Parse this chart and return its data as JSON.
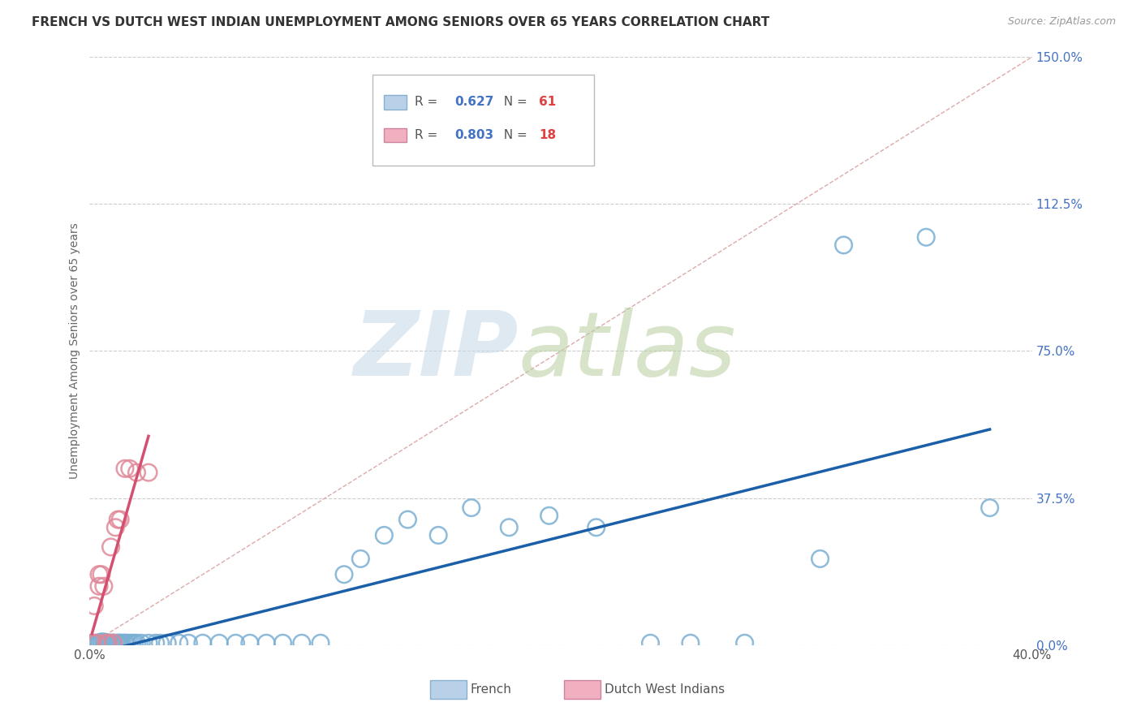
{
  "title": "FRENCH VS DUTCH WEST INDIAN UNEMPLOYMENT AMONG SENIORS OVER 65 YEARS CORRELATION CHART",
  "source": "Source: ZipAtlas.com",
  "ylabel": "Unemployment Among Seniors over 65 years",
  "xlim": [
    0.0,
    0.4
  ],
  "ylim": [
    0.0,
    1.5
  ],
  "xtick_pos": [
    0.0,
    0.4
  ],
  "xticklabels": [
    "0.0%",
    "40.0%"
  ],
  "yticks": [
    0.0,
    0.375,
    0.75,
    1.125,
    1.5
  ],
  "yticklabels": [
    "0.0%",
    "37.5%",
    "75.0%",
    "112.5%",
    "150.0%"
  ],
  "french_R": "0.627",
  "french_N": "61",
  "dutch_R": "0.803",
  "dutch_N": "18",
  "french_fill": "none",
  "french_edge": "#7bafd4",
  "french_line": "#1a5fa8",
  "dutch_fill": "none",
  "dutch_edge": "#e08898",
  "dutch_line": "#d45070",
  "ref_line_color": "#ccaaaa",
  "grid_color": "#cccccc",
  "title_color": "#333333",
  "source_color": "#999999",
  "ylabel_color": "#666666",
  "ytick_color": "#4472c4",
  "legend_french_fill": "#b8d0e8",
  "legend_dutch_fill": "#f0b0c0",
  "french_x": [
    0.002,
    0.003,
    0.004,
    0.004,
    0.005,
    0.005,
    0.006,
    0.006,
    0.007,
    0.007,
    0.007,
    0.008,
    0.008,
    0.009,
    0.009,
    0.01,
    0.01,
    0.011,
    0.012,
    0.012,
    0.013,
    0.013,
    0.014,
    0.015,
    0.015,
    0.016,
    0.017,
    0.018,
    0.019,
    0.02,
    0.022,
    0.025,
    0.028,
    0.03,
    0.033,
    0.038,
    0.042,
    0.048,
    0.055,
    0.062,
    0.068,
    0.075,
    0.082,
    0.09,
    0.098,
    0.108,
    0.115,
    0.125,
    0.135,
    0.148,
    0.162,
    0.178,
    0.195,
    0.215,
    0.238,
    0.255,
    0.278,
    0.31,
    0.32,
    0.355,
    0.382
  ],
  "french_y": [
    0.005,
    0.005,
    0.005,
    0.005,
    0.005,
    0.008,
    0.005,
    0.008,
    0.005,
    0.005,
    0.005,
    0.005,
    0.005,
    0.005,
    0.005,
    0.005,
    0.005,
    0.005,
    0.005,
    0.005,
    0.005,
    0.005,
    0.005,
    0.005,
    0.005,
    0.005,
    0.005,
    0.005,
    0.005,
    0.005,
    0.005,
    0.005,
    0.005,
    0.005,
    0.005,
    0.005,
    0.005,
    0.005,
    0.005,
    0.005,
    0.005,
    0.005,
    0.005,
    0.005,
    0.005,
    0.18,
    0.22,
    0.28,
    0.32,
    0.28,
    0.35,
    0.3,
    0.33,
    0.3,
    0.005,
    0.005,
    0.005,
    0.22,
    1.02,
    1.04,
    0.35
  ],
  "dutch_x": [
    0.001,
    0.002,
    0.003,
    0.004,
    0.004,
    0.005,
    0.006,
    0.007,
    0.008,
    0.009,
    0.01,
    0.011,
    0.012,
    0.013,
    0.015,
    0.017,
    0.02,
    0.025
  ],
  "dutch_y": [
    0.005,
    0.1,
    0.005,
    0.15,
    0.18,
    0.18,
    0.15,
    0.005,
    0.005,
    0.25,
    0.005,
    0.3,
    0.32,
    0.32,
    0.45,
    0.45,
    0.44,
    0.44
  ]
}
